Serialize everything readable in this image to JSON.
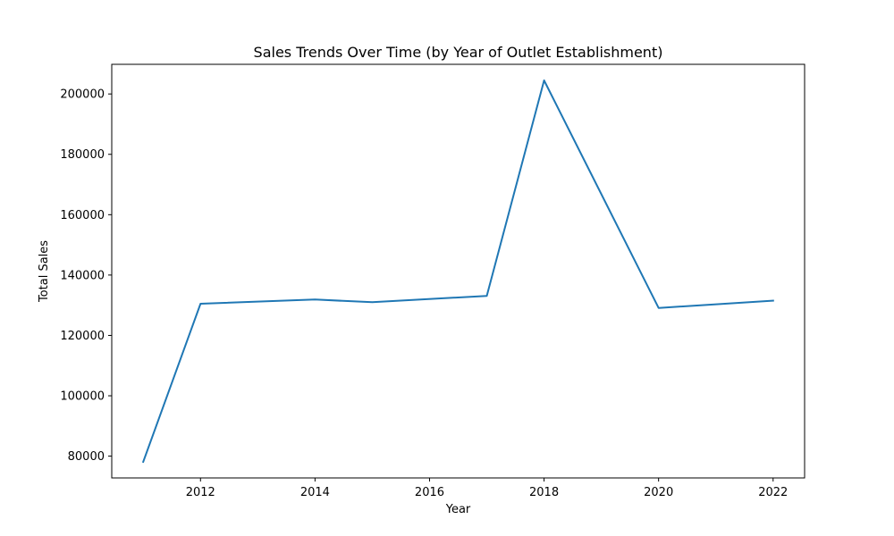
{
  "chart_data": {
    "type": "line",
    "title": "Sales Trends Over Time (by Year of Outlet Establishment)",
    "xlabel": "Year",
    "ylabel": "Total Sales",
    "x": [
      2011,
      2012,
      2014,
      2015,
      2017,
      2018,
      2020,
      2022
    ],
    "series": [
      {
        "values": [
          78100,
          130500,
          131900,
          131000,
          133100,
          204500,
          129100,
          131500
        ],
        "color": "#1f77b4"
      }
    ],
    "xlim": [
      2010.45,
      2022.55
    ],
    "ylim": [
      72780,
      209820
    ],
    "xticks": [
      2012,
      2014,
      2016,
      2018,
      2020,
      2022
    ],
    "yticks": [
      80000,
      100000,
      120000,
      140000,
      160000,
      180000,
      200000
    ],
    "grid": false,
    "legend": "none"
  }
}
